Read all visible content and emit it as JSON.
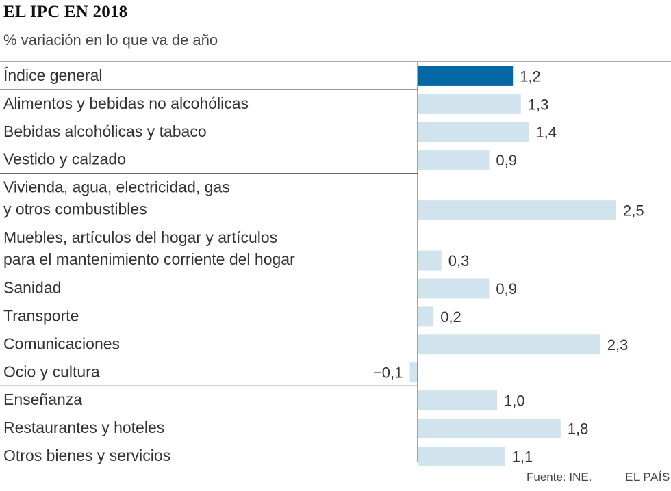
{
  "title": "EL IPC EN 2018",
  "subtitle": "% variación en lo que va de año",
  "source": "Fuente: INE.",
  "brand": "EL PAÍS",
  "colors": {
    "highlight": "#0568a6",
    "bar": "#d1e4ee",
    "rule": "#555555",
    "axis": "#666666",
    "text": "#333333"
  },
  "chart_data": {
    "type": "bar",
    "orientation": "horizontal",
    "title": "EL IPC EN 2018",
    "subtitle": "% variación en lo que va de año",
    "xlabel": "",
    "ylabel": "",
    "categories": [
      [
        "Índice general"
      ],
      [
        "Alimentos y bebidas no alcohólicas"
      ],
      [
        "Bebidas alcohólicas y tabaco"
      ],
      [
        "Vestido y calzado"
      ],
      [
        "Vivienda, agua, electricidad, gas",
        "y otros combustibles"
      ],
      [
        "Muebles, artículos del hogar y artículos",
        "para el mantenimiento corriente del hogar"
      ],
      [
        "Sanidad"
      ],
      [
        "Transporte"
      ],
      [
        "Comunicaciones"
      ],
      [
        "Ocio y cultura"
      ],
      [
        "Enseñanza"
      ],
      [
        "Restaurantes y hoteles"
      ],
      [
        "Otros bienes y servicios"
      ]
    ],
    "values": [
      1.2,
      1.3,
      1.4,
      0.9,
      2.5,
      0.3,
      0.9,
      0.2,
      2.3,
      -0.1,
      1.0,
      1.8,
      1.1
    ],
    "value_labels": [
      "1,2",
      "1,3",
      "1,4",
      "0,9",
      "2,5",
      "0,3",
      "0,9",
      "0,2",
      "2,3",
      "−0,1",
      "1,0",
      "1,8",
      "1,1"
    ],
    "highlight_index": 0,
    "group_breaks_after": [
      0,
      3,
      6,
      9
    ],
    "xlim": [
      -0.1,
      2.5
    ]
  }
}
